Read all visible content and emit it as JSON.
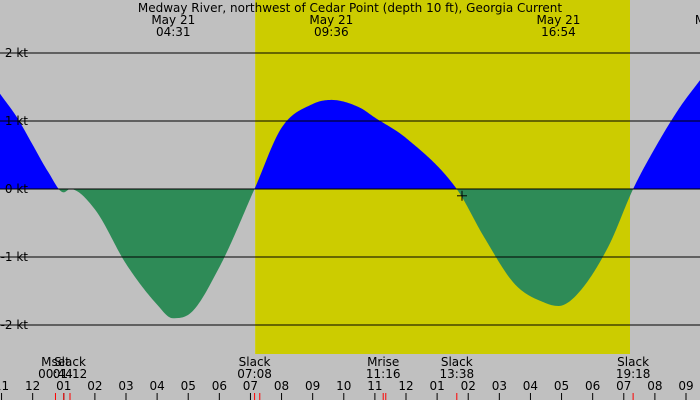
{
  "chart_data": {
    "type": "area",
    "title": "Medway River, northwest of Cedar Point (depth 10 ft), Georgia Current",
    "ylim": [
      -2.5,
      2.5
    ],
    "yticks": [
      {
        "value": 2,
        "label": "2 kt"
      },
      {
        "value": 1,
        "label": "1 kt"
      },
      {
        "value": 0,
        "label": "0 kt"
      },
      {
        "value": -1,
        "label": "-1 kt"
      },
      {
        "value": -2,
        "label": "-2 kt"
      }
    ],
    "xlim": [
      -1.05,
      21.45
    ],
    "xticks": [
      {
        "value": -1,
        "label": "11"
      },
      {
        "value": 0,
        "label": "12"
      },
      {
        "value": 1,
        "label": "01"
      },
      {
        "value": 2,
        "label": "02"
      },
      {
        "value": 3,
        "label": "03"
      },
      {
        "value": 4,
        "label": "04"
      },
      {
        "value": 5,
        "label": "05"
      },
      {
        "value": 6,
        "label": "06"
      },
      {
        "value": 7,
        "label": "07"
      },
      {
        "value": 8,
        "label": "08"
      },
      {
        "value": 9,
        "label": "09"
      },
      {
        "value": 10,
        "label": "10"
      },
      {
        "value": 11,
        "label": "11"
      },
      {
        "value": 12,
        "label": "12"
      },
      {
        "value": 13,
        "label": "01"
      },
      {
        "value": 14,
        "label": "02"
      },
      {
        "value": 15,
        "label": "03"
      },
      {
        "value": 16,
        "label": "04"
      },
      {
        "value": 17,
        "label": "05"
      },
      {
        "value": 18,
        "label": "06"
      },
      {
        "value": 19,
        "label": "07"
      },
      {
        "value": 20,
        "label": "08"
      },
      {
        "value": 21,
        "label": "09"
      }
    ],
    "daylight": [
      7.15,
      19.2
    ],
    "series": [
      {
        "x": [
          -1.05,
          -0.5,
          0.0,
          0.5,
          1.0,
          1.2,
          2.0,
          3.0,
          4.0,
          4.5,
          5.0,
          6.0,
          7.13,
          8.0,
          9.0,
          9.6,
          10.5,
          11.0,
          12.0,
          13.63,
          14.5,
          15.5,
          16.5,
          16.9,
          17.5,
          18.5,
          19.3,
          20.0,
          20.8,
          21.45
        ],
        "y": [
          1.4,
          1.05,
          0.65,
          0.25,
          -0.05,
          0.0,
          -0.3,
          -1.1,
          -1.7,
          -1.9,
          -1.85,
          -1.15,
          0.0,
          0.9,
          1.25,
          1.31,
          1.2,
          1.05,
          0.75,
          0.0,
          -0.7,
          -1.4,
          -1.68,
          -1.72,
          -1.55,
          -0.85,
          0.0,
          0.6,
          1.2,
          1.6
        ]
      }
    ],
    "header_labels": [
      {
        "x": 4.52,
        "line1": "May 21",
        "line2": "04:31"
      },
      {
        "x": 9.6,
        "line1": "May 21",
        "line2": "09:36"
      },
      {
        "x": 16.9,
        "line1": "May 21",
        "line2": "16:54"
      },
      {
        "x": 21.45,
        "line1": "M",
        "line2": ""
      }
    ],
    "events": [
      {
        "x": 0.733,
        "line1": "Mset",
        "line2": "00:44"
      },
      {
        "x": 1.2,
        "line1": "Slack",
        "line2": "01:12"
      },
      {
        "x": 7.133,
        "line1": "Slack",
        "line2": "07:08"
      },
      {
        "x": 11.267,
        "line1": "Mrise",
        "line2": "11:16"
      },
      {
        "x": 13.633,
        "line1": "Slack",
        "line2": "13:38"
      },
      {
        "x": 19.3,
        "line1": "Slack",
        "line2": "19:18"
      }
    ],
    "red_ticks": [
      0.733,
      1.0,
      1.2,
      7.133,
      7.3,
      11.267,
      11.35,
      13.633,
      19.3
    ],
    "marker": {
      "x": 13.8,
      "y": -0.1
    },
    "colors": {
      "night": "#c0c0c0",
      "day": "#cccc00",
      "flood": "#0000ff",
      "ebb": "#2e8b57",
      "gridline": "#000000",
      "event_tick": "#ff0000"
    }
  }
}
